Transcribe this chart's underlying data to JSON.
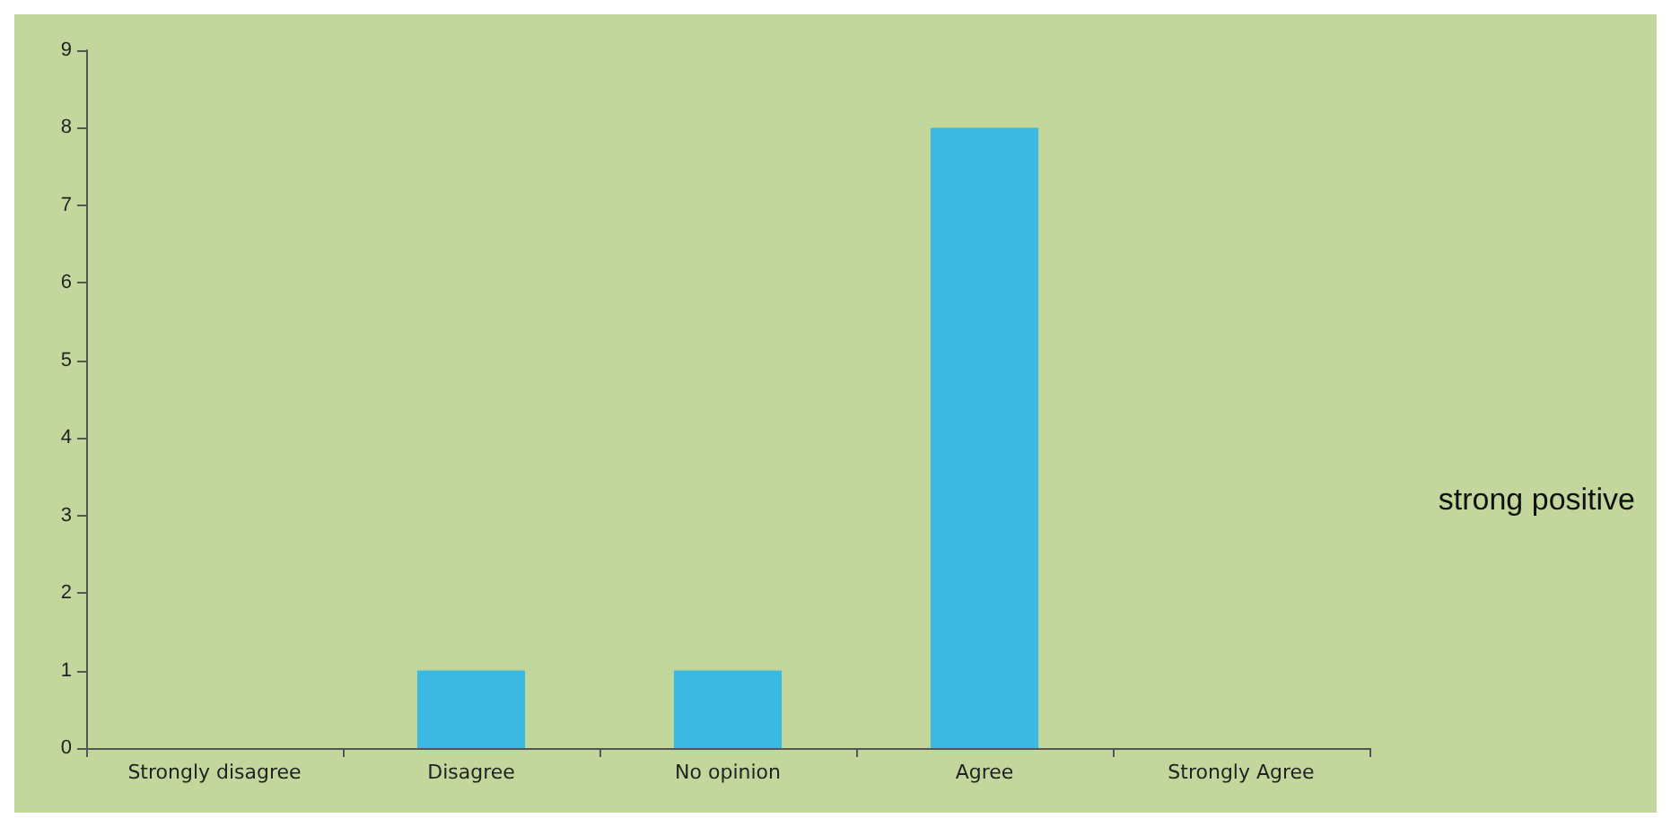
{
  "chart_data": {
    "type": "bar",
    "categories": [
      "Strongly disagree",
      "Disagree",
      "No opinion",
      "Agree",
      "Strongly Agree"
    ],
    "values": [
      0,
      1,
      1,
      8,
      0
    ],
    "color": "#3cb9e2",
    "ylim": [
      0,
      9
    ],
    "yticks": [
      0,
      1,
      2,
      3,
      4,
      5,
      6,
      7,
      8,
      9
    ],
    "grid": false,
    "annotations": [
      "strong positive"
    ]
  }
}
